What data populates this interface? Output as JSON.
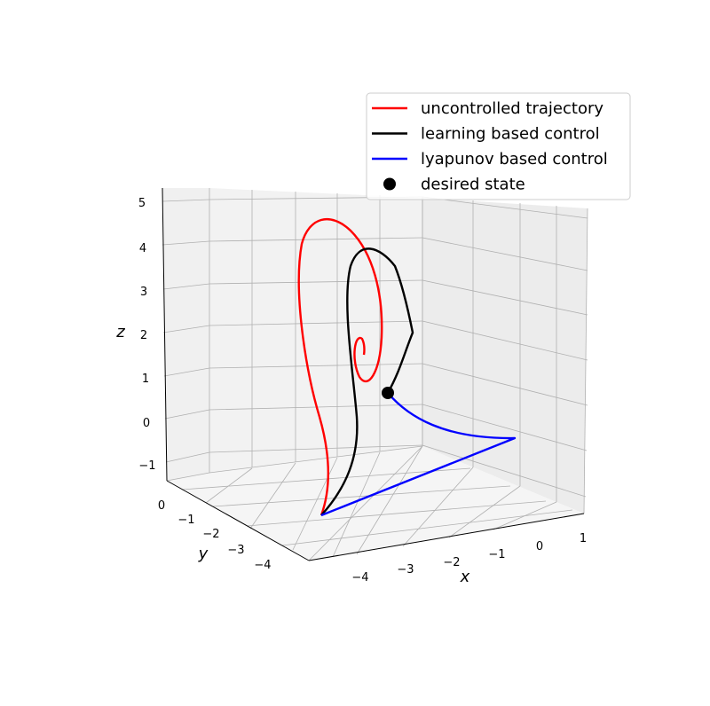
{
  "chart_data": {
    "type": "line",
    "projection": "3d",
    "title": "",
    "xlabel": "x",
    "ylabel": "y",
    "zlabel": "z",
    "xlim": [
      -4.8,
      1.3
    ],
    "ylim": [
      -4.8,
      0.5
    ],
    "zlim": [
      -1.4,
      5.3
    ],
    "x_ticks": [
      "−4",
      "−3",
      "−2",
      "−1",
      "0",
      "1"
    ],
    "y_ticks": [
      "0",
      "−1",
      "−2",
      "−3",
      "−4"
    ],
    "z_ticks": [
      "5",
      "4",
      "3",
      "2",
      "1",
      "0",
      "−1"
    ],
    "grid": true,
    "legend_position": "top-right",
    "series": [
      {
        "name": "uncontrolled trajectory",
        "color": "#ff0000",
        "points": [
          [
            -4.5,
            -4.5,
            -1.4
          ],
          [
            -4.4,
            -4.3,
            0.0
          ],
          [
            -4.25,
            -4.1,
            1.8
          ],
          [
            -4.1,
            -3.9,
            3.3
          ],
          [
            -3.9,
            -3.6,
            4.4
          ],
          [
            -3.6,
            -3.3,
            4.9
          ],
          [
            -3.3,
            -3.0,
            4.7
          ],
          [
            -3.05,
            -2.75,
            4.0
          ],
          [
            -2.9,
            -2.55,
            3.0
          ],
          [
            -2.85,
            -2.45,
            2.0
          ],
          [
            -2.9,
            -2.45,
            1.5
          ],
          [
            -3.0,
            -2.55,
            1.4
          ],
          [
            -3.05,
            -2.65,
            1.8
          ],
          [
            -3.05,
            -2.7,
            2.2
          ],
          [
            -3.02,
            -2.65,
            2.3
          ],
          [
            -3.0,
            -2.62,
            2.1
          ]
        ]
      },
      {
        "name": "learning based control",
        "color": "#000000",
        "points": [
          [
            -4.5,
            -4.5,
            -1.4
          ],
          [
            -4.1,
            -4.0,
            -0.5
          ],
          [
            -3.8,
            -3.6,
            0.9
          ],
          [
            -3.75,
            -3.5,
            2.0
          ],
          [
            -3.65,
            -3.3,
            3.3
          ],
          [
            -3.45,
            -3.05,
            4.0
          ],
          [
            -3.2,
            -2.8,
            3.9
          ],
          [
            -2.95,
            -2.55,
            3.3
          ],
          [
            -2.8,
            -2.35,
            2.4
          ],
          [
            -2.75,
            -2.3,
            1.7
          ],
          [
            -2.85,
            -2.45,
            1.0
          ],
          [
            -3.0,
            -2.6,
            0.5
          ]
        ]
      },
      {
        "name": "lyapunov based control",
        "color": "#0000ff",
        "points": [
          [
            -3.0,
            -2.6,
            0.5
          ],
          [
            -2.6,
            -2.4,
            0.15
          ],
          [
            -2.1,
            -2.2,
            -0.15
          ],
          [
            -1.5,
            -2.0,
            -0.35
          ],
          [
            -0.8,
            -1.95,
            -0.45
          ],
          [
            -0.5,
            -1.9,
            -0.5
          ],
          [
            -4.5,
            -4.5,
            -1.4
          ]
        ]
      }
    ],
    "markers": [
      {
        "name": "desired state",
        "color": "#000000",
        "point": [
          -3.0,
          -2.6,
          0.5
        ]
      }
    ]
  }
}
